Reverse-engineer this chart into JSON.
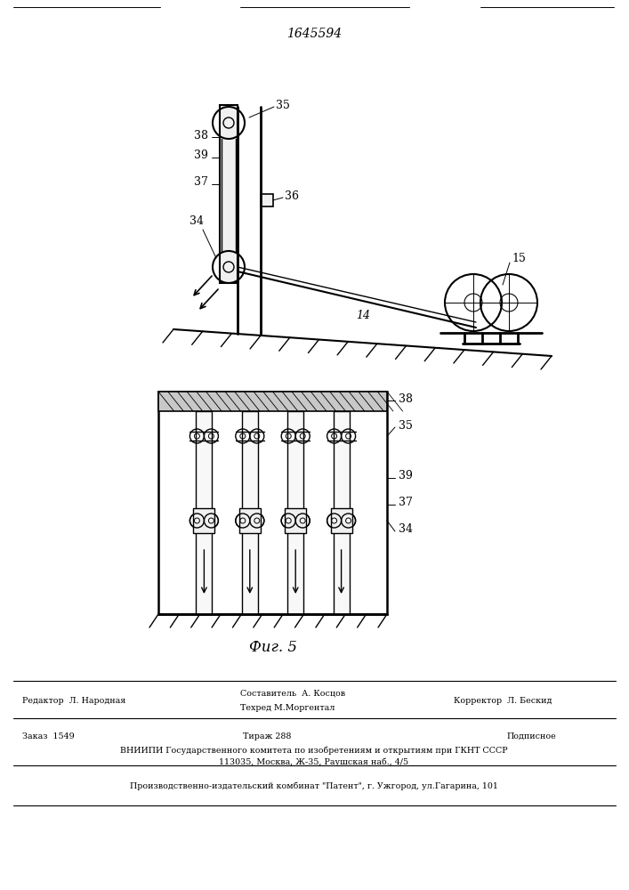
{
  "patent_number": "1645594",
  "background_color": "#ffffff",
  "line_color": "#000000",
  "fig_caption": "Фиг. 5",
  "footer_row1_left": "Редактор  Л. Народная",
  "footer_row1_mid1": "Составитель  А. Косцов",
  "footer_row1_mid2": "Техред М.Моргентал",
  "footer_row1_right": "Корректор  Л. Бескид",
  "footer_row2_order": "Заказ  1549",
  "footer_row2_circ": "Тираж 288",
  "footer_row2_sub": "Подписное",
  "footer_row2_org": "ВНИИПИ Государственного комитета по изобретениям и открытиям при ГКНТ СССР",
  "footer_row2_addr": "113035, Москва, Ж-35, Раушская наб., 4/5",
  "footer_row3": "Производственно-издательский комбинат \"Патент\", г. Ужгород, ул.Гагарина, 101"
}
